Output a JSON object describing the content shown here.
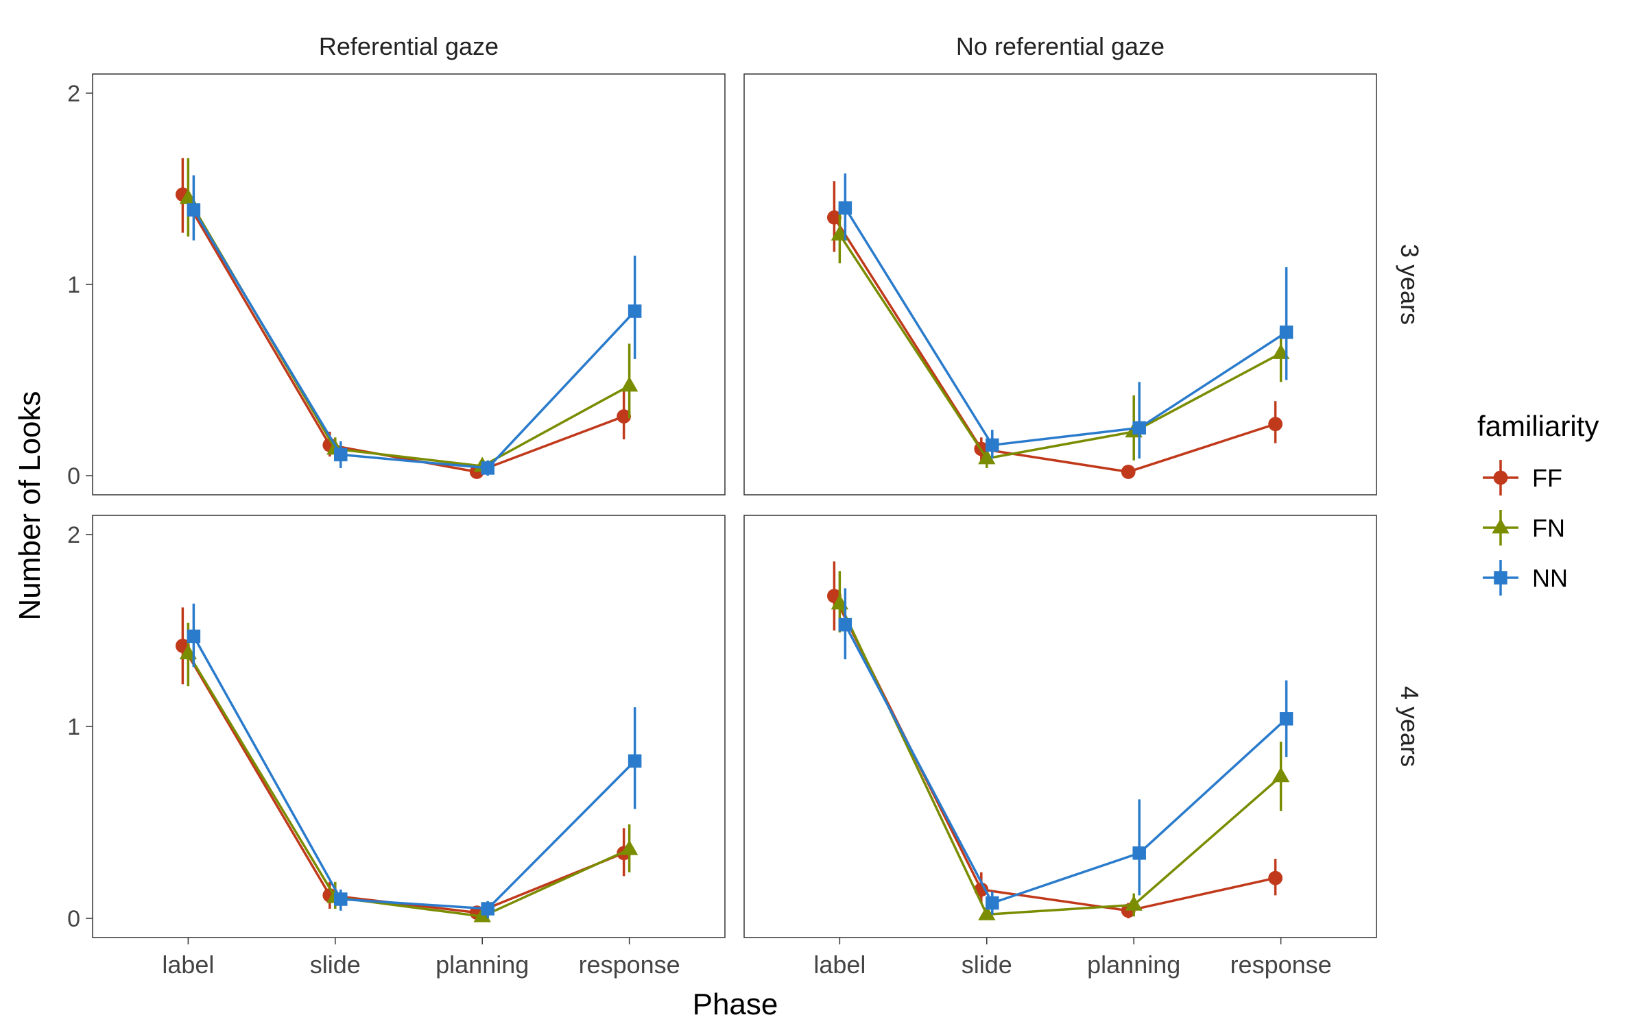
{
  "chart_data": {
    "type": "line",
    "xlabel": "Phase",
    "ylabel": "Number of Looks",
    "x": [
      "label",
      "slide",
      "planning",
      "response"
    ],
    "ylim": [
      -0.1,
      2.1
    ],
    "yticks": [
      0,
      1,
      2
    ],
    "grid": false,
    "legend_position": "right",
    "legend": {
      "title": "familiarity",
      "entries": [
        "FF",
        "FN",
        "NN"
      ]
    },
    "col_facets": [
      "Referential gaze",
      "No referential gaze"
    ],
    "row_facets": [
      "3 years",
      "4 years"
    ],
    "series_style": [
      {
        "name": "FF",
        "color": "#c0391b",
        "marker": "circle"
      },
      {
        "name": "FN",
        "color": "#7a8c00",
        "marker": "triangle"
      },
      {
        "name": "NN",
        "color": "#2a7bcc",
        "marker": "square"
      }
    ],
    "panels": [
      {
        "col": "Referential gaze",
        "row": "3 years",
        "series": [
          {
            "name": "FF",
            "values": [
              1.47,
              0.16,
              0.02,
              0.31
            ],
            "error": [
              [
                1.27,
                1.66
              ],
              [
                0.1,
                0.23
              ],
              [
                0.0,
                0.05
              ],
              [
                0.19,
                0.45
              ]
            ]
          },
          {
            "name": "FN",
            "values": [
              1.45,
              0.14,
              0.05,
              0.47
            ],
            "error": [
              [
                1.25,
                1.66
              ],
              [
                0.08,
                0.2
              ],
              [
                0.01,
                0.08
              ],
              [
                0.3,
                0.69
              ]
            ]
          },
          {
            "name": "NN",
            "values": [
              1.39,
              0.11,
              0.04,
              0.86
            ],
            "error": [
              [
                1.23,
                1.57
              ],
              [
                0.04,
                0.18
              ],
              [
                0.0,
                0.08
              ],
              [
                0.61,
                1.15
              ]
            ]
          }
        ]
      },
      {
        "col": "No referential gaze",
        "row": "3 years",
        "series": [
          {
            "name": "FF",
            "values": [
              1.35,
              0.14,
              0.02,
              0.27
            ],
            "error": [
              [
                1.17,
                1.54
              ],
              [
                0.08,
                0.2
              ],
              [
                0.0,
                0.05
              ],
              [
                0.17,
                0.39
              ]
            ]
          },
          {
            "name": "FN",
            "values": [
              1.26,
              0.09,
              0.23,
              0.64
            ],
            "error": [
              [
                1.11,
                1.41
              ],
              [
                0.04,
                0.15
              ],
              [
                0.08,
                0.42
              ],
              [
                0.49,
                0.77
              ]
            ]
          },
          {
            "name": "NN",
            "values": [
              1.4,
              0.16,
              0.25,
              0.75
            ],
            "error": [
              [
                1.23,
                1.58
              ],
              [
                0.09,
                0.24
              ],
              [
                0.09,
                0.49
              ],
              [
                0.5,
                1.09
              ]
            ]
          }
        ]
      },
      {
        "col": "Referential gaze",
        "row": "4 years",
        "series": [
          {
            "name": "FF",
            "values": [
              1.42,
              0.12,
              0.03,
              0.34
            ],
            "error": [
              [
                1.22,
                1.62
              ],
              [
                0.05,
                0.19
              ],
              [
                0.0,
                0.06
              ],
              [
                0.22,
                0.47
              ]
            ]
          },
          {
            "name": "FN",
            "values": [
              1.38,
              0.11,
              0.01,
              0.36
            ],
            "error": [
              [
                1.21,
                1.54
              ],
              [
                0.05,
                0.19
              ],
              [
                0.0,
                0.03
              ],
              [
                0.24,
                0.49
              ]
            ]
          },
          {
            "name": "NN",
            "values": [
              1.47,
              0.1,
              0.05,
              0.82
            ],
            "error": [
              [
                1.31,
                1.64
              ],
              [
                0.04,
                0.15
              ],
              [
                0.0,
                0.09
              ],
              [
                0.57,
                1.1
              ]
            ]
          }
        ]
      },
      {
        "col": "No referential gaze",
        "row": "4 years",
        "series": [
          {
            "name": "FF",
            "values": [
              1.68,
              0.15,
              0.04,
              0.21
            ],
            "error": [
              [
                1.5,
                1.86
              ],
              [
                0.08,
                0.24
              ],
              [
                0.0,
                0.08
              ],
              [
                0.12,
                0.31
              ]
            ]
          },
          {
            "name": "FN",
            "values": [
              1.64,
              0.02,
              0.07,
              0.74
            ],
            "error": [
              [
                1.49,
                1.81
              ],
              [
                0.0,
                0.05
              ],
              [
                0.01,
                0.13
              ],
              [
                0.56,
                0.92
              ]
            ]
          },
          {
            "name": "NN",
            "values": [
              1.53,
              0.08,
              0.34,
              1.04
            ],
            "error": [
              [
                1.35,
                1.72
              ],
              [
                0.02,
                0.14
              ],
              [
                0.12,
                0.62
              ],
              [
                0.84,
                1.24
              ]
            ]
          }
        ]
      }
    ]
  }
}
